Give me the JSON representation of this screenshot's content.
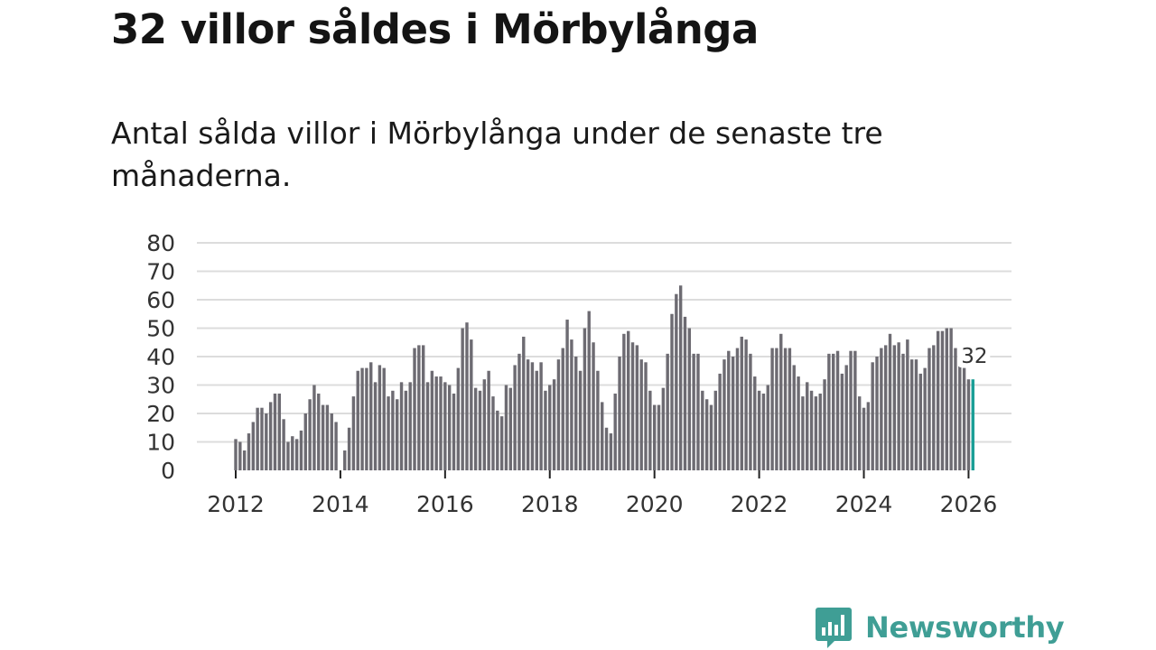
{
  "title": "32 villor såldes i Mörbylånga",
  "subtitle": "Antal sålda villor i Mörbylånga under de senaste tre månaderna.",
  "brand": {
    "name": "Newsworthy",
    "logo_icon": "bar-chart-speech-bubble-icon"
  },
  "colors": {
    "bar": "#6d6b72",
    "highlight": "#1a9e96",
    "brand": "#3f9e95"
  },
  "chart_data": {
    "type": "bar",
    "title": "32 villor såldes i Mörbylånga",
    "xlabel": "",
    "ylabel": "",
    "ylim": [
      0,
      80
    ],
    "yticks": [
      0,
      10,
      20,
      30,
      40,
      50,
      60,
      70,
      80
    ],
    "xticks": [
      "2012",
      "2014",
      "2016",
      "2018",
      "2020",
      "2022",
      "2024",
      "2026"
    ],
    "start": "2012-01",
    "highlight_label": "32",
    "values": [
      11,
      10,
      7,
      13,
      17,
      22,
      22,
      20,
      24,
      27,
      27,
      18,
      10,
      12,
      11,
      14,
      20,
      25,
      30,
      27,
      23,
      23,
      20,
      17,
      0,
      7,
      15,
      26,
      35,
      36,
      36,
      38,
      31,
      37,
      36,
      26,
      28,
      25,
      31,
      28,
      31,
      43,
      44,
      44,
      31,
      35,
      33,
      33,
      31,
      30,
      27,
      36,
      50,
      52,
      46,
      29,
      28,
      32,
      35,
      26,
      21,
      19,
      30,
      29,
      37,
      41,
      47,
      39,
      38,
      35,
      38,
      28,
      30,
      32,
      39,
      43,
      53,
      46,
      40,
      35,
      50,
      56,
      45,
      35,
      24,
      15,
      13,
      27,
      40,
      48,
      49,
      45,
      44,
      39,
      38,
      28,
      23,
      23,
      29,
      41,
      55,
      62,
      65,
      54,
      50,
      41,
      41,
      28,
      25,
      23,
      28,
      34,
      39,
      42,
      40,
      43,
      47,
      46,
      41,
      33,
      28,
      27,
      30,
      43,
      43,
      48,
      43,
      43,
      37,
      33,
      26,
      31,
      28,
      26,
      27,
      32,
      41,
      41,
      42,
      34,
      37,
      42,
      42,
      26,
      22,
      24,
      38,
      40,
      43,
      44,
      48,
      44,
      45,
      41,
      46,
      39,
      39,
      34,
      36,
      43,
      44,
      49,
      49,
      50,
      50,
      43,
      38,
      36,
      32,
      32
    ]
  }
}
